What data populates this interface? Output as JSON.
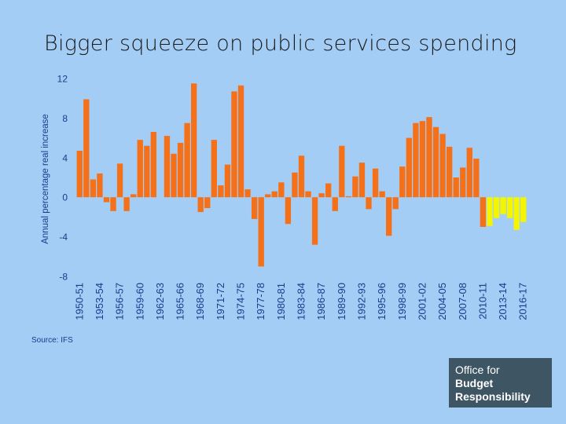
{
  "slide": {
    "title": "Bigger squeeze on public services spending",
    "source": "Source: IFS",
    "logo": {
      "line1": "Office for",
      "line2": "Budget",
      "line3": "Responsibility"
    }
  },
  "colors": {
    "background": "#a4cdf6",
    "outturn": "#f4711a",
    "forecast": "#f5f500",
    "axis_text": "#1c3a8a"
  },
  "chart_data": {
    "type": "bar",
    "title": "",
    "ylabel": "Annual percentage real increase",
    "xlabel": "",
    "ylim": [
      -8,
      12
    ],
    "yticks": [
      12,
      8,
      4,
      0,
      -4,
      -8
    ],
    "grid": false,
    "legend": "none",
    "tick_labels": [
      "1950-51",
      "1953-54",
      "1956-57",
      "1959-60",
      "1962-63",
      "1965-66",
      "1968-69",
      "1971-72",
      "1974-75",
      "1977-78",
      "1980-81",
      "1983-84",
      "1986-87",
      "1989-90",
      "1992-93",
      "1995-96",
      "1998-99",
      "2001-02",
      "2004-05",
      "2007-08",
      "2010-11",
      "2013-14",
      "2016-17"
    ],
    "categories": [
      "1950-51",
      "1951-52",
      "1952-53",
      "1953-54",
      "1954-55",
      "1955-56",
      "1956-57",
      "1957-58",
      "1958-59",
      "1959-60",
      "1960-61",
      "1961-62",
      "1962-63",
      "1963-64",
      "1964-65",
      "1965-66",
      "1966-67",
      "1967-68",
      "1968-69",
      "1969-70",
      "1970-71",
      "1971-72",
      "1972-73",
      "1973-74",
      "1974-75",
      "1975-76",
      "1976-77",
      "1977-78",
      "1978-79",
      "1979-80",
      "1980-81",
      "1981-82",
      "1982-83",
      "1983-84",
      "1984-85",
      "1985-86",
      "1986-87",
      "1987-88",
      "1988-89",
      "1989-90",
      "1990-91",
      "1991-92",
      "1992-93",
      "1993-94",
      "1994-95",
      "1995-96",
      "1996-97",
      "1997-98",
      "1998-99",
      "1999-00",
      "2000-01",
      "2001-02",
      "2002-03",
      "2003-04",
      "2004-05",
      "2005-06",
      "2006-07",
      "2007-08",
      "2008-09",
      "2009-10",
      "2010-11",
      "2011-12",
      "2012-13",
      "2013-14",
      "2014-15",
      "2015-16",
      "2016-17"
    ],
    "values": [
      4.7,
      9.9,
      1.8,
      2.4,
      -0.5,
      -1.4,
      3.4,
      -1.4,
      0.3,
      5.8,
      5.2,
      6.6,
      null,
      6.2,
      4.4,
      5.5,
      7.5,
      11.5,
      -1.5,
      -1.1,
      5.8,
      1.2,
      3.3,
      10.7,
      11.3,
      0.8,
      -2.2,
      -7.0,
      0.3,
      0.6,
      1.5,
      -2.7,
      2.5,
      4.2,
      0.6,
      -4.8,
      0.4,
      1.4,
      -1.4,
      5.2,
      0.1,
      2.1,
      3.5,
      -1.2,
      2.9,
      0.6,
      -3.9,
      -1.2,
      3.1,
      6.0,
      7.5,
      7.7,
      8.1,
      7.1,
      6.4,
      5.1,
      2.0,
      3.0,
      5.0,
      3.9,
      -3.0,
      -2.9,
      -2.1,
      -1.7,
      -2.1,
      -3.3,
      -2.5
    ],
    "series_types": [
      "outturn",
      "outturn",
      "outturn",
      "outturn",
      "outturn",
      "outturn",
      "outturn",
      "outturn",
      "outturn",
      "outturn",
      "outturn",
      "outturn",
      "outturn",
      "outturn",
      "outturn",
      "outturn",
      "outturn",
      "outturn",
      "outturn",
      "outturn",
      "outturn",
      "outturn",
      "outturn",
      "outturn",
      "outturn",
      "outturn",
      "outturn",
      "outturn",
      "outturn",
      "outturn",
      "outturn",
      "outturn",
      "outturn",
      "outturn",
      "outturn",
      "outturn",
      "outturn",
      "outturn",
      "outturn",
      "outturn",
      "outturn",
      "outturn",
      "outturn",
      "outturn",
      "outturn",
      "outturn",
      "outturn",
      "outturn",
      "outturn",
      "outturn",
      "outturn",
      "outturn",
      "outturn",
      "outturn",
      "outturn",
      "outturn",
      "outturn",
      "outturn",
      "outturn",
      "outturn",
      "outturn",
      "forecast",
      "forecast",
      "forecast",
      "forecast",
      "forecast",
      "forecast"
    ]
  }
}
